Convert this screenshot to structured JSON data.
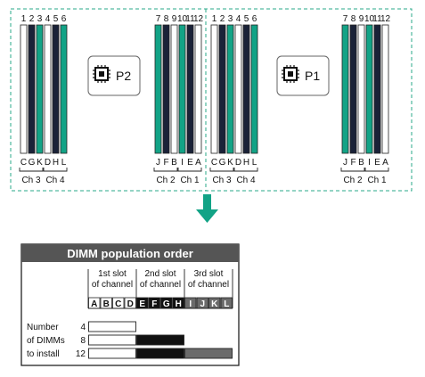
{
  "colors": {
    "green": "#12a386",
    "dark": "#1a2238",
    "white_slot": "#ffffff",
    "dash": "#2aa889",
    "arrow": "#12a386",
    "table_header": "#555555",
    "black_cell": "#111111",
    "gray_cell": "#6b6b6b"
  },
  "board": {
    "cpu_left": {
      "label": "P2",
      "icon": "cpu-chip-icon"
    },
    "cpu_right": {
      "label": "P1",
      "icon": "cpu-chip-icon"
    },
    "left_cpu": {
      "slot_numbers_left": [
        "1",
        "2",
        "3",
        "4",
        "5",
        "6"
      ],
      "slot_numbers_right": [
        "7",
        "8",
        "9",
        "10",
        "11",
        "12"
      ],
      "slot_letters_left": [
        "C",
        "G",
        "K",
        "D",
        "H",
        "L"
      ],
      "slot_letters_right": [
        "J",
        "F",
        "B",
        "I",
        "E",
        "A"
      ],
      "slot_colors_left": [
        "white",
        "dark",
        "green",
        "white",
        "dark",
        "green"
      ],
      "slot_colors_right": [
        "green",
        "dark",
        "white",
        "green",
        "dark",
        "white"
      ],
      "channels_left": [
        "Ch 3",
        "Ch 4"
      ],
      "channels_right": [
        "Ch 2",
        "Ch 1"
      ]
    },
    "right_cpu": {
      "slot_numbers_left": [
        "1",
        "2",
        "3",
        "4",
        "5",
        "6"
      ],
      "slot_numbers_right": [
        "7",
        "8",
        "9",
        "10",
        "11",
        "12"
      ],
      "slot_letters_left": [
        "C",
        "G",
        "K",
        "D",
        "H",
        "L"
      ],
      "slot_letters_right": [
        "J",
        "F",
        "B",
        "I",
        "E",
        "A"
      ],
      "slot_colors_left": [
        "white",
        "dark",
        "green",
        "white",
        "dark",
        "green"
      ],
      "slot_colors_right": [
        "green",
        "dark",
        "white",
        "green",
        "dark",
        "white"
      ],
      "channels_left": [
        "Ch 3",
        "Ch 4"
      ],
      "channels_right": [
        "Ch 2",
        "Ch 1"
      ]
    }
  },
  "arrow_icon": "arrow-down-icon",
  "table": {
    "title": "DIMM population order",
    "groups": [
      {
        "line1": "1st slot",
        "line2": "of channel",
        "letters": [
          "A",
          "B",
          "C",
          "D"
        ],
        "style": "white"
      },
      {
        "line1": "2nd slot",
        "line2": "of channel",
        "letters": [
          "E",
          "F",
          "G",
          "H"
        ],
        "style": "black"
      },
      {
        "line1": "3rd slot",
        "line2": "of channel",
        "letters": [
          "I",
          "J",
          "K",
          "L"
        ],
        "style": "gray"
      }
    ],
    "row_label_lines": [
      "Number",
      "of DIMMs",
      "to install"
    ],
    "rows": [
      {
        "count": "4",
        "fill": [
          "white"
        ]
      },
      {
        "count": "8",
        "fill": [
          "white",
          "black"
        ]
      },
      {
        "count": "12",
        "fill": [
          "white",
          "black",
          "gray"
        ]
      }
    ]
  }
}
